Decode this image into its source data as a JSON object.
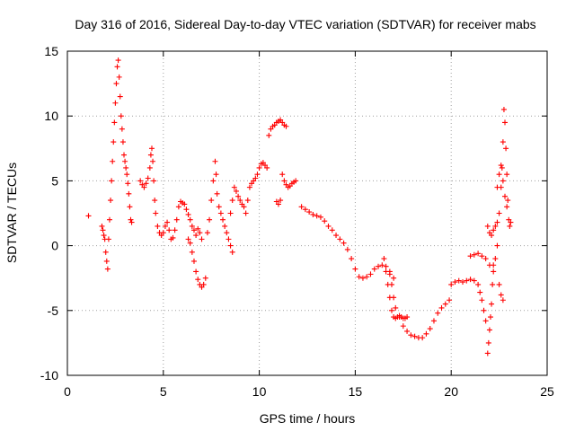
{
  "chart_data": {
    "type": "scatter",
    "title": "Day 316 of 2016, Sidereal Day-to-day VTEC variation (SDTVAR) for receiver mabs",
    "xlabel": "GPS time / hours",
    "ylabel": "SDTVAR / TECUs",
    "xlim": [
      0,
      25
    ],
    "ylim": [
      -10,
      15
    ],
    "xticks": [
      0,
      5,
      10,
      15,
      20,
      25
    ],
    "yticks": [
      -10,
      -5,
      0,
      5,
      10,
      15
    ],
    "grid": true,
    "marker": "plus",
    "color": "#ff0000",
    "series": [
      {
        "name": "SDTVAR",
        "points": [
          [
            1.1,
            2.3
          ],
          [
            1.8,
            1.5
          ],
          [
            1.85,
            1.2
          ],
          [
            1.9,
            0.8
          ],
          [
            1.95,
            0.5
          ],
          [
            2.0,
            -0.5
          ],
          [
            2.05,
            -1.2
          ],
          [
            2.1,
            -1.8
          ],
          [
            2.15,
            0.5
          ],
          [
            2.2,
            2.0
          ],
          [
            2.25,
            3.5
          ],
          [
            2.3,
            5.0
          ],
          [
            2.35,
            6.5
          ],
          [
            2.4,
            8.0
          ],
          [
            2.45,
            9.5
          ],
          [
            2.5,
            11.0
          ],
          [
            2.55,
            12.5
          ],
          [
            2.6,
            13.8
          ],
          [
            2.65,
            14.3
          ],
          [
            2.7,
            13.0
          ],
          [
            2.75,
            11.5
          ],
          [
            2.8,
            10.0
          ],
          [
            2.85,
            9.0
          ],
          [
            2.9,
            8.0
          ],
          [
            2.95,
            7.0
          ],
          [
            3.0,
            6.5
          ],
          [
            3.05,
            6.0
          ],
          [
            3.1,
            5.5
          ],
          [
            3.15,
            4.8
          ],
          [
            3.2,
            4.0
          ],
          [
            3.25,
            3.0
          ],
          [
            3.3,
            2.0
          ],
          [
            3.35,
            1.8
          ],
          [
            3.8,
            5.0
          ],
          [
            3.9,
            4.7
          ],
          [
            4.0,
            4.5
          ],
          [
            4.1,
            4.8
          ],
          [
            4.2,
            5.2
          ],
          [
            4.3,
            6.0
          ],
          [
            4.35,
            7.0
          ],
          [
            4.4,
            7.5
          ],
          [
            4.45,
            6.5
          ],
          [
            4.5,
            5.0
          ],
          [
            4.55,
            3.5
          ],
          [
            4.6,
            2.5
          ],
          [
            4.7,
            1.5
          ],
          [
            4.8,
            1.0
          ],
          [
            4.9,
            0.8
          ],
          [
            5.0,
            1.0
          ],
          [
            5.1,
            1.5
          ],
          [
            5.2,
            1.8
          ],
          [
            5.3,
            1.2
          ],
          [
            5.4,
            0.5
          ],
          [
            5.5,
            0.6
          ],
          [
            5.6,
            1.2
          ],
          [
            5.7,
            2.0
          ],
          [
            5.8,
            3.0
          ],
          [
            5.9,
            3.4
          ],
          [
            6.0,
            3.3
          ],
          [
            6.1,
            3.2
          ],
          [
            6.2,
            2.8
          ],
          [
            6.3,
            2.4
          ],
          [
            6.4,
            2.0
          ],
          [
            6.5,
            1.5
          ],
          [
            6.6,
            1.2
          ],
          [
            6.7,
            0.8
          ],
          [
            6.8,
            1.3
          ],
          [
            6.9,
            1.0
          ],
          [
            7.0,
            0.5
          ],
          [
            6.3,
            0.5
          ],
          [
            6.4,
            0.2
          ],
          [
            6.5,
            -0.5
          ],
          [
            6.6,
            -1.2
          ],
          [
            6.7,
            -2.0
          ],
          [
            6.8,
            -2.6
          ],
          [
            6.9,
            -3.0
          ],
          [
            7.0,
            -3.2
          ],
          [
            7.1,
            -3.0
          ],
          [
            7.2,
            -2.5
          ],
          [
            7.3,
            1.0
          ],
          [
            7.4,
            2.0
          ],
          [
            7.5,
            3.5
          ],
          [
            7.6,
            5.0
          ],
          [
            7.7,
            6.5
          ],
          [
            7.75,
            5.5
          ],
          [
            7.8,
            4.0
          ],
          [
            7.9,
            3.0
          ],
          [
            8.0,
            2.5
          ],
          [
            8.1,
            2.0
          ],
          [
            8.2,
            1.5
          ],
          [
            8.3,
            1.0
          ],
          [
            8.4,
            0.5
          ],
          [
            8.5,
            0.0
          ],
          [
            8.6,
            -0.5
          ],
          [
            8.5,
            2.5
          ],
          [
            8.6,
            3.5
          ],
          [
            8.7,
            4.5
          ],
          [
            8.8,
            4.2
          ],
          [
            8.9,
            3.8
          ],
          [
            9.0,
            3.5
          ],
          [
            9.1,
            3.2
          ],
          [
            9.2,
            3.0
          ],
          [
            9.3,
            2.5
          ],
          [
            9.4,
            3.5
          ],
          [
            9.5,
            4.5
          ],
          [
            9.6,
            4.8
          ],
          [
            9.7,
            5.0
          ],
          [
            9.8,
            5.2
          ],
          [
            9.9,
            5.5
          ],
          [
            10.0,
            6.0
          ],
          [
            10.1,
            6.3
          ],
          [
            10.2,
            6.4
          ],
          [
            10.3,
            6.2
          ],
          [
            10.4,
            6.0
          ],
          [
            10.5,
            8.5
          ],
          [
            10.6,
            9.0
          ],
          [
            10.7,
            9.2
          ],
          [
            10.8,
            9.3
          ],
          [
            10.9,
            9.5
          ],
          [
            11.0,
            9.6
          ],
          [
            11.1,
            9.7
          ],
          [
            11.2,
            9.5
          ],
          [
            11.3,
            9.3
          ],
          [
            11.4,
            9.2
          ],
          [
            10.9,
            3.4
          ],
          [
            11.0,
            3.2
          ],
          [
            11.1,
            3.5
          ],
          [
            11.2,
            5.5
          ],
          [
            11.3,
            5.0
          ],
          [
            11.4,
            4.7
          ],
          [
            11.5,
            4.5
          ],
          [
            11.6,
            4.6
          ],
          [
            11.7,
            4.8
          ],
          [
            11.8,
            4.9
          ],
          [
            11.9,
            5.0
          ],
          [
            12.2,
            3.0
          ],
          [
            12.4,
            2.8
          ],
          [
            12.6,
            2.6
          ],
          [
            12.8,
            2.4
          ],
          [
            13.0,
            2.3
          ],
          [
            13.2,
            2.2
          ],
          [
            13.4,
            1.9
          ],
          [
            13.6,
            1.5
          ],
          [
            13.8,
            1.2
          ],
          [
            14.0,
            0.8
          ],
          [
            14.2,
            0.5
          ],
          [
            14.4,
            0.2
          ],
          [
            14.6,
            -0.3
          ],
          [
            14.8,
            -1.0
          ],
          [
            15.0,
            -1.8
          ],
          [
            15.2,
            -2.4
          ],
          [
            15.4,
            -2.5
          ],
          [
            15.6,
            -2.4
          ],
          [
            15.8,
            -2.2
          ],
          [
            16.0,
            -1.8
          ],
          [
            16.2,
            -1.6
          ],
          [
            16.4,
            -1.5
          ],
          [
            16.6,
            -1.6
          ],
          [
            16.8,
            -2.0
          ],
          [
            17.0,
            -2.5
          ],
          [
            16.5,
            -1.0
          ],
          [
            16.6,
            -2.0
          ],
          [
            16.7,
            -3.0
          ],
          [
            16.8,
            -4.0
          ],
          [
            16.9,
            -5.0
          ],
          [
            17.0,
            -5.5
          ],
          [
            17.1,
            -5.6
          ],
          [
            17.2,
            -5.5
          ],
          [
            17.3,
            -5.4
          ],
          [
            17.4,
            -5.5
          ],
          [
            17.5,
            -5.6
          ],
          [
            17.6,
            -5.6
          ],
          [
            17.7,
            -5.5
          ],
          [
            16.8,
            -2.2
          ],
          [
            16.9,
            -3.0
          ],
          [
            17.0,
            -4.0
          ],
          [
            17.1,
            -4.8
          ],
          [
            17.3,
            -5.5
          ],
          [
            17.5,
            -6.2
          ],
          [
            17.7,
            -6.6
          ],
          [
            17.9,
            -6.9
          ],
          [
            18.1,
            -7.0
          ],
          [
            18.3,
            -7.1
          ],
          [
            18.5,
            -7.1
          ],
          [
            18.7,
            -6.8
          ],
          [
            18.9,
            -6.4
          ],
          [
            19.1,
            -5.8
          ],
          [
            19.3,
            -5.2
          ],
          [
            19.5,
            -4.8
          ],
          [
            19.7,
            -4.5
          ],
          [
            19.9,
            -4.2
          ],
          [
            20.0,
            -3.0
          ],
          [
            20.2,
            -2.8
          ],
          [
            20.4,
            -2.7
          ],
          [
            20.6,
            -2.8
          ],
          [
            20.8,
            -2.7
          ],
          [
            21.0,
            -2.6
          ],
          [
            21.2,
            -2.7
          ],
          [
            21.4,
            -3.0
          ],
          [
            21.5,
            -3.6
          ],
          [
            21.6,
            -4.2
          ],
          [
            21.7,
            -5.0
          ],
          [
            21.8,
            -5.8
          ],
          [
            21.9,
            -8.3
          ],
          [
            21.95,
            -7.5
          ],
          [
            22.0,
            -6.5
          ],
          [
            22.05,
            -5.5
          ],
          [
            22.1,
            -4.5
          ],
          [
            22.15,
            -3.0
          ],
          [
            22.2,
            -1.5
          ],
          [
            21.9,
            1.5
          ],
          [
            22.0,
            1.0
          ],
          [
            22.1,
            0.8
          ],
          [
            22.2,
            1.2
          ],
          [
            22.3,
            1.5
          ],
          [
            22.4,
            1.8
          ],
          [
            22.5,
            2.5
          ],
          [
            22.6,
            4.5
          ],
          [
            22.65,
            6.0
          ],
          [
            22.7,
            8.0
          ],
          [
            22.75,
            10.5
          ],
          [
            22.8,
            9.5
          ],
          [
            22.85,
            7.5
          ],
          [
            22.9,
            5.5
          ],
          [
            22.95,
            3.5
          ],
          [
            23.0,
            2.0
          ],
          [
            23.05,
            1.5
          ],
          [
            23.1,
            1.8
          ],
          [
            22.5,
            -3.0
          ],
          [
            22.6,
            -3.8
          ],
          [
            22.7,
            -4.2
          ],
          [
            22.4,
            4.5
          ],
          [
            22.5,
            5.5
          ],
          [
            22.6,
            6.2
          ],
          [
            22.7,
            5.0
          ],
          [
            22.8,
            3.8
          ],
          [
            22.9,
            3.0
          ],
          [
            21.0,
            -0.8
          ],
          [
            21.2,
            -0.7
          ],
          [
            21.4,
            -0.6
          ],
          [
            21.6,
            -0.8
          ],
          [
            21.8,
            -1.0
          ],
          [
            22.0,
            -1.5
          ],
          [
            22.2,
            -2.0
          ],
          [
            22.3,
            -1.0
          ],
          [
            22.4,
            0.0
          ]
        ]
      }
    ]
  }
}
